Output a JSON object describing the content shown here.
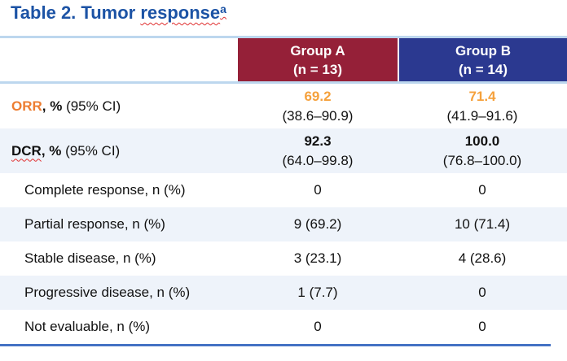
{
  "title": {
    "prefix": "Table 2. Tumor ",
    "misspelled_word": "response",
    "footnote_marker": "a"
  },
  "table": {
    "columns": [
      {
        "name": "Group A",
        "n": "(n = 13)"
      },
      {
        "name": "Group B",
        "n": "(n = 14)"
      }
    ],
    "rows": [
      {
        "label_strong": "ORR",
        "label_strong_style": "orange",
        "label_strong_wavy": false,
        "label_bold_suffix": ", %",
        "label_normal": " (95% CI)",
        "indent": false,
        "shaded": false,
        "group_a": {
          "value": "69.2",
          "value_style": "orange-bold",
          "ci": "(38.6–90.9)"
        },
        "group_b": {
          "value": "71.4",
          "value_style": "orange-bold",
          "ci": "(41.9–91.6)"
        }
      },
      {
        "label_strong": "DCR",
        "label_strong_style": "black",
        "label_strong_wavy": true,
        "label_bold_suffix": ", %",
        "label_normal": " (95% CI)",
        "indent": false,
        "shaded": true,
        "group_a": {
          "value": "92.3",
          "value_style": "bold",
          "ci": "(64.0–99.8)"
        },
        "group_b": {
          "value": "100.0",
          "value_style": "bold",
          "ci": "(76.8–100.0)"
        }
      },
      {
        "label_strong": "",
        "label_strong_style": "",
        "label_strong_wavy": false,
        "label_bold_suffix": "",
        "label_normal": "Complete response, n (%)",
        "indent": true,
        "shaded": false,
        "group_a": {
          "value": "0",
          "value_style": "plain"
        },
        "group_b": {
          "value": "0",
          "value_style": "plain"
        }
      },
      {
        "label_strong": "",
        "label_strong_style": "",
        "label_strong_wavy": false,
        "label_bold_suffix": "",
        "label_normal": "Partial response, n (%)",
        "indent": true,
        "shaded": true,
        "group_a": {
          "value": "9 (69.2)",
          "value_style": "plain"
        },
        "group_b": {
          "value": "10 (71.4)",
          "value_style": "plain"
        }
      },
      {
        "label_strong": "",
        "label_strong_style": "",
        "label_strong_wavy": false,
        "label_bold_suffix": "",
        "label_normal": "Stable disease, n (%)",
        "indent": true,
        "shaded": false,
        "group_a": {
          "value": "3 (23.1)",
          "value_style": "plain"
        },
        "group_b": {
          "value": "4 (28.6)",
          "value_style": "plain"
        }
      },
      {
        "label_strong": "",
        "label_strong_style": "",
        "label_strong_wavy": false,
        "label_bold_suffix": "",
        "label_normal": "Progressive disease, n (%)",
        "indent": true,
        "shaded": true,
        "group_a": {
          "value": "1 (7.7)",
          "value_style": "plain"
        },
        "group_b": {
          "value": "0",
          "value_style": "plain"
        }
      },
      {
        "label_strong": "",
        "label_strong_style": "",
        "label_strong_wavy": false,
        "label_bold_suffix": "",
        "label_normal": "Not evaluable, n (%)",
        "indent": true,
        "shaded": false,
        "group_a": {
          "value": "0",
          "value_style": "plain"
        },
        "group_b": {
          "value": "0",
          "value_style": "plain"
        }
      }
    ]
  },
  "colors": {
    "title_blue": "#1C53A5",
    "group_a_header_red": "#952038",
    "group_b_header_blue": "#2B3990",
    "orr_label_orange": "#ED7D31",
    "orr_value_orange": "#F5A13C",
    "shaded_row_blue": "#EEF3FA",
    "light_rule_blue": "#BDD7EE",
    "bottom_rule_blue": "#4472C4",
    "spellcheck_squiggle_red": "#E03131"
  }
}
